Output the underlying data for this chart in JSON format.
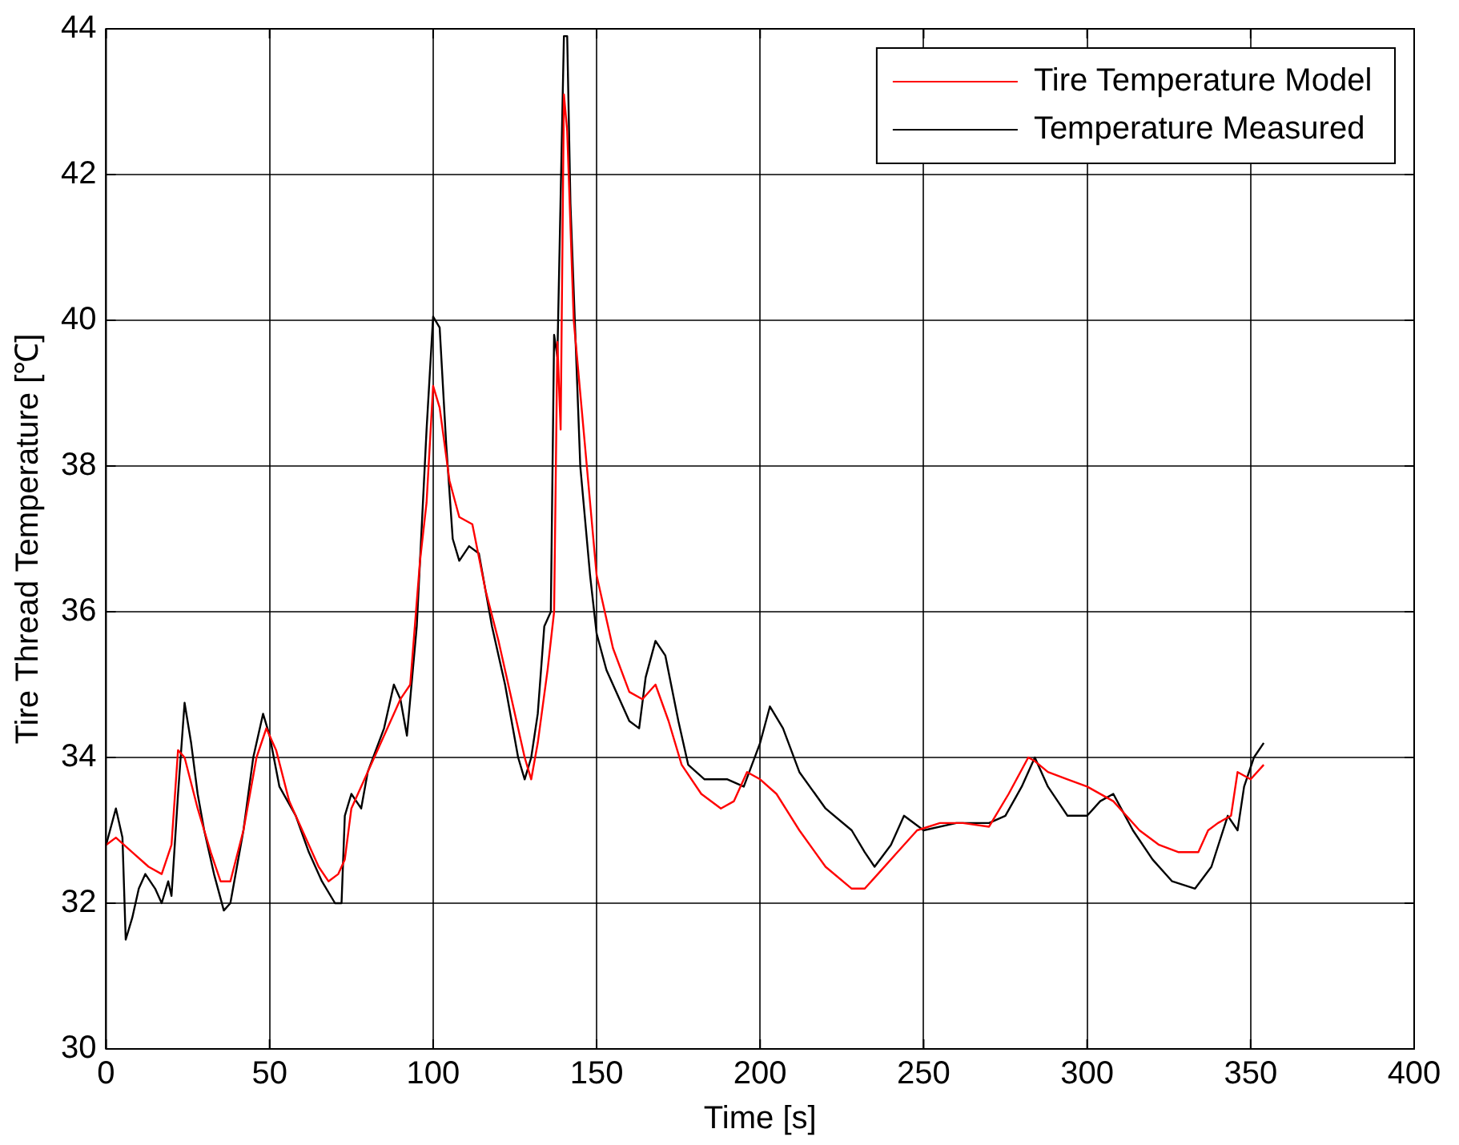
{
  "chart_data": {
    "type": "line",
    "xlabel": "Time [s]",
    "ylabel": "Tire Thread Temperature [℃]",
    "xlim": [
      0,
      400
    ],
    "xticks": [
      0,
      50,
      100,
      150,
      200,
      250,
      300,
      350,
      400
    ],
    "ylim": [
      30,
      44
    ],
    "yticks": [
      30,
      32,
      34,
      36,
      38,
      40,
      42,
      44
    ],
    "grid": true,
    "legend": "top right",
    "marker": "none",
    "line_style": "solid",
    "series": [
      {
        "name": "Tire Temperature Model",
        "color": "#ff0000",
        "x": [
          0,
          3,
          8,
          13,
          17,
          20,
          22,
          24,
          28,
          32,
          35,
          38,
          42,
          46,
          49,
          52,
          56,
          60,
          65,
          68,
          71,
          73,
          75,
          80,
          85,
          88,
          90,
          93,
          96,
          98,
          100,
          102,
          105,
          108,
          112,
          116,
          120,
          124,
          128,
          130,
          132,
          135,
          137,
          138,
          139,
          140,
          141,
          143,
          146,
          150,
          155,
          160,
          164,
          168,
          172,
          176,
          182,
          188,
          192,
          196,
          200,
          205,
          212,
          220,
          228,
          232,
          236,
          242,
          248,
          255,
          262,
          270,
          276,
          282,
          284,
          288,
          294,
          300,
          308,
          316,
          322,
          328,
          334,
          337,
          340,
          344,
          346,
          350,
          354
        ],
        "values": [
          32.8,
          32.9,
          32.7,
          32.5,
          32.4,
          32.8,
          34.1,
          34.0,
          33.3,
          32.7,
          32.3,
          32.3,
          33.0,
          34.0,
          34.4,
          34.1,
          33.4,
          33.0,
          32.5,
          32.3,
          32.4,
          32.6,
          33.3,
          33.8,
          34.3,
          34.6,
          34.8,
          35.0,
          36.7,
          37.5,
          39.1,
          38.8,
          37.8,
          37.3,
          37.2,
          36.3,
          35.6,
          34.8,
          34.0,
          33.7,
          34.2,
          35.2,
          36.0,
          39.7,
          38.5,
          43.1,
          42.6,
          40.0,
          38.5,
          36.5,
          35.5,
          34.9,
          34.8,
          35.0,
          34.5,
          33.9,
          33.5,
          33.3,
          33.4,
          33.8,
          33.7,
          33.5,
          33.0,
          32.5,
          32.2,
          32.2,
          32.4,
          32.7,
          33.0,
          33.1,
          33.1,
          33.05,
          33.5,
          34.0,
          33.95,
          33.8,
          33.7,
          33.6,
          33.4,
          33.0,
          32.8,
          32.7,
          32.7,
          33.0,
          33.1,
          33.2,
          33.8,
          33.7,
          33.9
        ]
      },
      {
        "name": "Temperature Measured",
        "color": "#000000",
        "x": [
          0,
          3,
          5,
          6,
          8,
          10,
          12,
          15,
          17,
          19,
          20,
          22,
          24,
          26,
          28,
          30,
          33,
          36,
          38,
          42,
          45,
          48,
          50,
          53,
          58,
          62,
          66,
          70,
          72,
          73,
          75,
          78,
          80,
          85,
          88,
          90,
          92,
          95,
          98,
          100,
          102,
          104,
          106,
          108,
          111,
          114,
          118,
          122,
          126,
          128,
          130,
          132,
          134,
          136,
          137,
          138,
          140,
          141,
          142,
          145,
          148,
          150,
          153,
          157,
          160,
          163,
          165,
          168,
          171,
          175,
          178,
          183,
          190,
          195,
          200,
          203,
          207,
          212,
          220,
          228,
          232,
          235,
          240,
          244,
          250,
          260,
          270,
          275,
          280,
          284,
          288,
          294,
          300,
          304,
          308,
          314,
          320,
          326,
          333,
          338,
          343,
          346,
          348,
          351,
          354
        ],
        "values": [
          32.8,
          33.3,
          32.9,
          31.5,
          31.8,
          32.2,
          32.4,
          32.2,
          32.0,
          32.3,
          32.1,
          33.5,
          34.75,
          34.2,
          33.5,
          33.0,
          32.4,
          31.9,
          32.0,
          33.0,
          34.0,
          34.6,
          34.3,
          33.6,
          33.2,
          32.7,
          32.3,
          32.0,
          32.0,
          33.2,
          33.5,
          33.3,
          33.8,
          34.4,
          35.0,
          34.8,
          34.3,
          35.8,
          38.5,
          40.05,
          39.9,
          38.3,
          37.0,
          36.7,
          36.9,
          36.8,
          35.8,
          35.0,
          34.0,
          33.7,
          34.0,
          34.6,
          35.8,
          36.0,
          39.8,
          39.5,
          43.9,
          43.9,
          41.6,
          38.0,
          36.5,
          35.7,
          35.2,
          34.8,
          34.5,
          34.4,
          35.1,
          35.6,
          35.4,
          34.5,
          33.9,
          33.7,
          33.7,
          33.6,
          34.2,
          34.7,
          34.4,
          33.8,
          33.3,
          33.0,
          32.7,
          32.5,
          32.8,
          33.2,
          33.0,
          33.1,
          33.1,
          33.2,
          33.6,
          34.0,
          33.6,
          33.2,
          33.2,
          33.4,
          33.5,
          33.0,
          32.6,
          32.3,
          32.2,
          32.5,
          33.2,
          33.0,
          33.6,
          34.0,
          34.2
        ]
      }
    ]
  }
}
